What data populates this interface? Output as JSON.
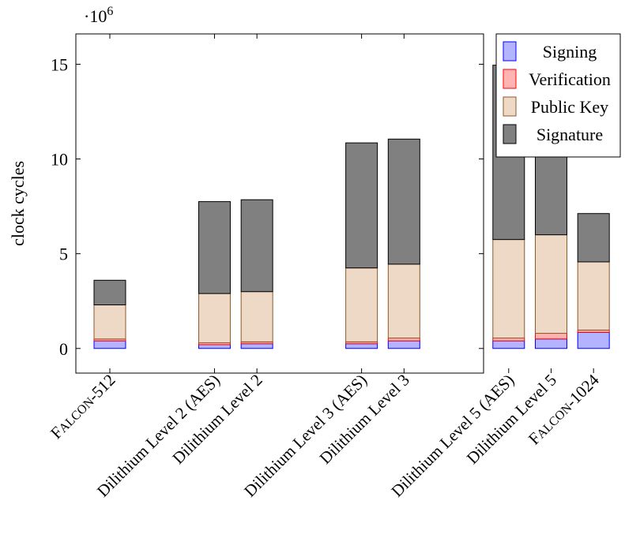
{
  "chart_data": {
    "type": "bar",
    "stacked": true,
    "ylabel": "clock cycles",
    "y_multiplier": "·10",
    "y_multiplier_exp": "6",
    "ylim": [
      -1.3,
      16.6
    ],
    "yticks": [
      0,
      5,
      10,
      15
    ],
    "ytick_labels": [
      "0",
      "5",
      "10",
      "15"
    ],
    "grid": false,
    "legend_position": "outside-top-right",
    "categories": [
      {
        "label": "FALCON-512",
        "smallcaps": true,
        "sc_first": "F",
        "sc_rest": "ALCON",
        "sc_suffix": "-512",
        "slot": 0
      },
      {
        "label": "Dilithium Level 2 (AES)",
        "slot": 1.85
      },
      {
        "label": "Dilithium Level 2",
        "slot": 2.6
      },
      {
        "label": "Dilithium Level 3 (AES)",
        "slot": 4.45
      },
      {
        "label": "Dilithium Level 3",
        "slot": 5.2
      },
      {
        "label": "Dilithium Level 5 (AES)",
        "slot": 7.05
      },
      {
        "label": "Dilithium Level 5",
        "slot": 7.8
      },
      {
        "label": "FALCON-1024",
        "smallcaps": true,
        "sc_first": "F",
        "sc_rest": "ALCON",
        "sc_suffix": "-1024",
        "slot": 8.55
      }
    ],
    "series": [
      {
        "name": "Signing",
        "fill": "#b3b3ff",
        "stroke": "#0000ff",
        "values": [
          0.4,
          0.2,
          0.25,
          0.25,
          0.4,
          0.4,
          0.5,
          0.85
        ]
      },
      {
        "name": "Verification",
        "fill": "#ffb3b3",
        "stroke": "#ff0000",
        "values": [
          0.1,
          0.1,
          0.1,
          0.1,
          0.15,
          0.15,
          0.3,
          0.12
        ]
      },
      {
        "name": "Public Key",
        "fill": "#eed9c7",
        "stroke": "#8a5a2b",
        "values": [
          1.8,
          2.6,
          2.65,
          3.9,
          3.9,
          5.2,
          5.2,
          3.6
        ]
      },
      {
        "name": "Signature",
        "fill": "#808080",
        "stroke": "#000000",
        "values": [
          1.3,
          4.85,
          4.85,
          6.6,
          6.6,
          9.2,
          9.2,
          2.55
        ]
      }
    ]
  }
}
